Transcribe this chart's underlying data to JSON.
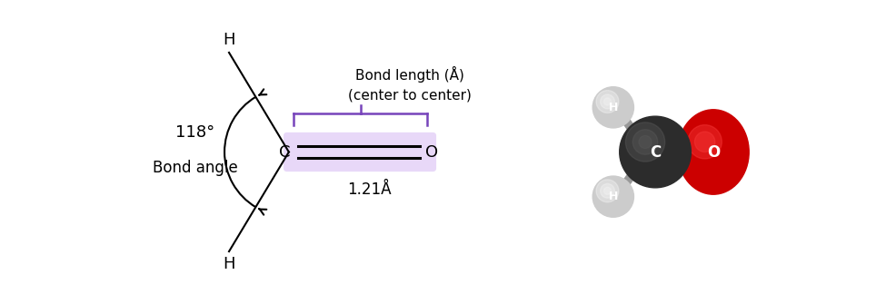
{
  "bg_color": "#ffffff",
  "bond_angle": "118°",
  "bond_angle_label": "Bond angle",
  "bond_length_label": "Bond length (Å)",
  "bond_length_sublabel": "(center to center)",
  "bond_length_value": "1.21Å",
  "molecule_label_C": "C",
  "molecule_label_O": "O",
  "molecule_label_H": "H",
  "lavender_color": "#e8d8f8",
  "line_color": "#000000",
  "arrow_color": "#000000",
  "brace_color": "#7744bb",
  "C_atom_dark": "#2a2a2a",
  "C_atom_mid": "#383838",
  "O_atom_dark": "#bb0000",
  "O_atom_bright": "#ee2222",
  "H_atom_light": "#e8e8e8",
  "H_atom_dark": "#aaaaaa",
  "bond_color": "#666666",
  "text_color": "#000000",
  "font_size_main": 13,
  "font_size_label": 12,
  "font_size_small": 11
}
